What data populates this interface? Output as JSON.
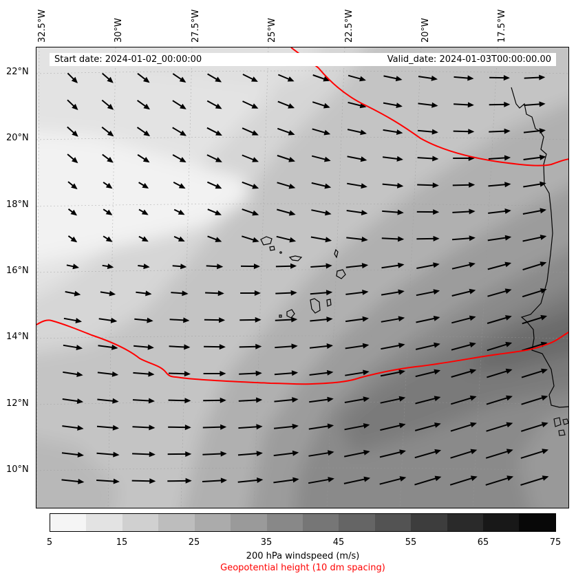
{
  "map": {
    "start_date": "Start date: 2024-01-02_00:00:00",
    "valid_date": "Valid_date: 2024-01-03T00:00:00.00",
    "lon_labels": [
      "32.5°W",
      "30°W",
      "27.5°W",
      "25°W",
      "22.5°W",
      "20°W",
      "17.5°W"
    ],
    "lat_labels": [
      "22°N",
      "20°N",
      "18°N",
      "16°N",
      "14°N",
      "12°N",
      "10°N"
    ],
    "contour_color": "#ff0000",
    "arrow_color": "#000000"
  },
  "colorbar": {
    "ticks": [
      "5",
      "15",
      "25",
      "35",
      "45",
      "55",
      "65",
      "75"
    ],
    "levels": [
      5,
      10,
      15,
      20,
      25,
      30,
      35,
      40,
      45,
      50,
      55,
      60,
      65,
      70,
      75
    ],
    "colors": [
      "#f5f5f5",
      "#e3e3e3",
      "#d0d0d0",
      "#bdbdbd",
      "#ababab",
      "#9a9a9a",
      "#888888",
      "#767676",
      "#656565",
      "#535353",
      "#3d3d3d",
      "#2a2a2a",
      "#181818",
      "#080808"
    ],
    "label": "200 hPa windspeed (m/s)",
    "sublabel": "Geopotential height (10 dm spacing)"
  }
}
